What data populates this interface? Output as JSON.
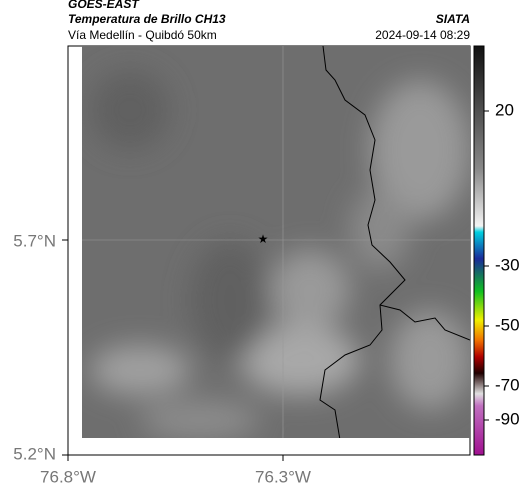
{
  "header": {
    "title": "GOES-EAST",
    "subtitle": "Temperatura de Brillo CH13",
    "source": "SIATA",
    "route": "Vía Medellín - Quibdó 50km",
    "datetime": "2024-09-14 08:29"
  },
  "map": {
    "lat_labels": [
      "5.7°N",
      "5.2°N"
    ],
    "lon_labels": [
      "76.8°W",
      "76.3°W"
    ]
  },
  "colorbar": {
    "ticks": [
      20,
      -30,
      -50,
      -70,
      -90
    ]
  }
}
